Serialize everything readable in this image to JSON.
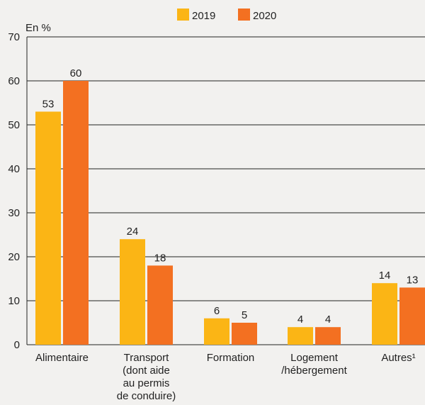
{
  "chart_data": {
    "type": "bar",
    "unit_label": "En %",
    "categories": [
      [
        "Alimentaire"
      ],
      [
        "Transport",
        "(dont aide",
        "au permis",
        "de conduire)"
      ],
      [
        "Formation"
      ],
      [
        "Logement",
        "/hébergement"
      ],
      [
        "Autres¹"
      ]
    ],
    "series": [
      {
        "name": "2019",
        "color": "#fbb515",
        "values": [
          53,
          24,
          6,
          4,
          14
        ]
      },
      {
        "name": "2020",
        "color": "#f37021",
        "values": [
          60,
          18,
          5,
          4,
          13
        ]
      }
    ],
    "ylim": [
      0,
      70
    ],
    "yticks": [
      0,
      10,
      20,
      30,
      40,
      50,
      60,
      70
    ],
    "grid": true,
    "legend_position": "top-center"
  }
}
